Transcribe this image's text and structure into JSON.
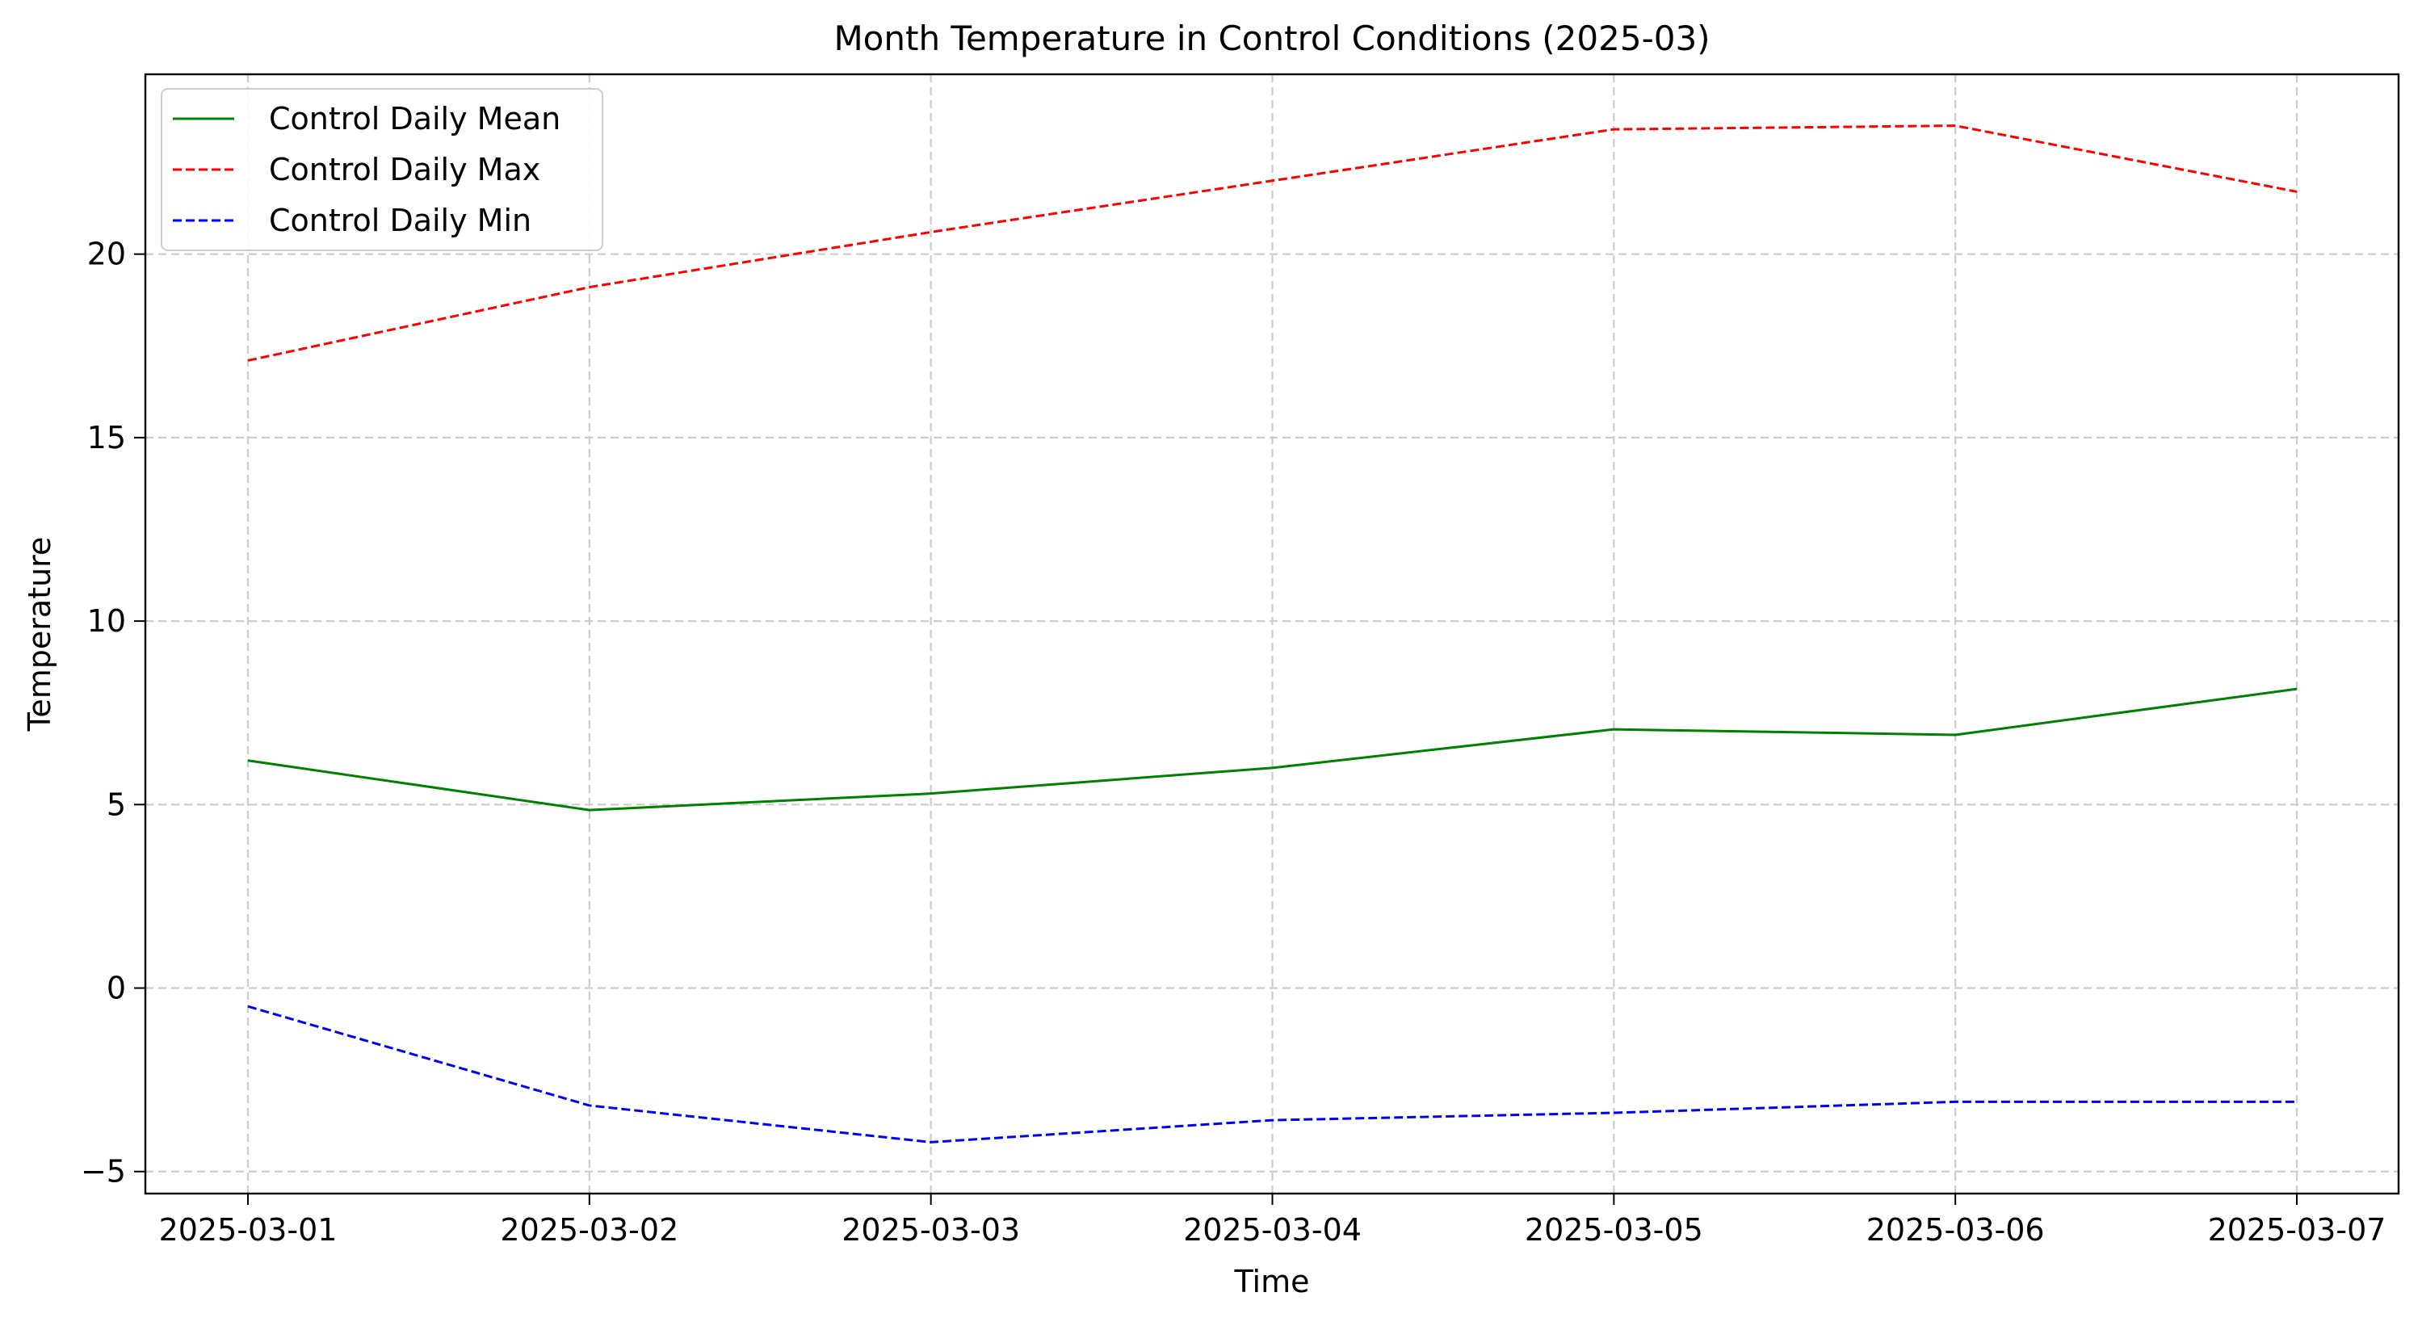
{
  "chart_data": {
    "type": "line",
    "title": "Month Temperature in Control Conditions (2025-03)",
    "xlabel": "Time",
    "ylabel": "Temperature",
    "categories": [
      "2025-03-01",
      "2025-03-02",
      "2025-03-03",
      "2025-03-04",
      "2025-03-05",
      "2025-03-06",
      "2025-03-07"
    ],
    "ylim": [
      -5.6,
      24.9
    ],
    "yticks": [
      {
        "value": -5,
        "label": "−5"
      },
      {
        "value": 0,
        "label": "0"
      },
      {
        "value": 5,
        "label": "5"
      },
      {
        "value": 10,
        "label": "10"
      },
      {
        "value": 15,
        "label": "15"
      },
      {
        "value": 20,
        "label": "20"
      }
    ],
    "grid": true,
    "legend_position": "top-left",
    "series": [
      {
        "name": "Control Daily Mean",
        "color": "#008000",
        "style": "solid",
        "values": [
          6.2,
          4.85,
          5.3,
          6.0,
          7.05,
          6.9,
          8.15
        ]
      },
      {
        "name": "Control Daily Max",
        "color": "#ff0000",
        "style": "dashed",
        "values": [
          17.1,
          19.1,
          20.6,
          22.0,
          23.4,
          23.5,
          21.7
        ]
      },
      {
        "name": "Control Daily Min",
        "color": "#0000ff",
        "style": "dashed",
        "values": [
          -0.5,
          -3.2,
          -4.2,
          -3.6,
          -3.4,
          -3.1,
          -3.1
        ]
      }
    ]
  }
}
